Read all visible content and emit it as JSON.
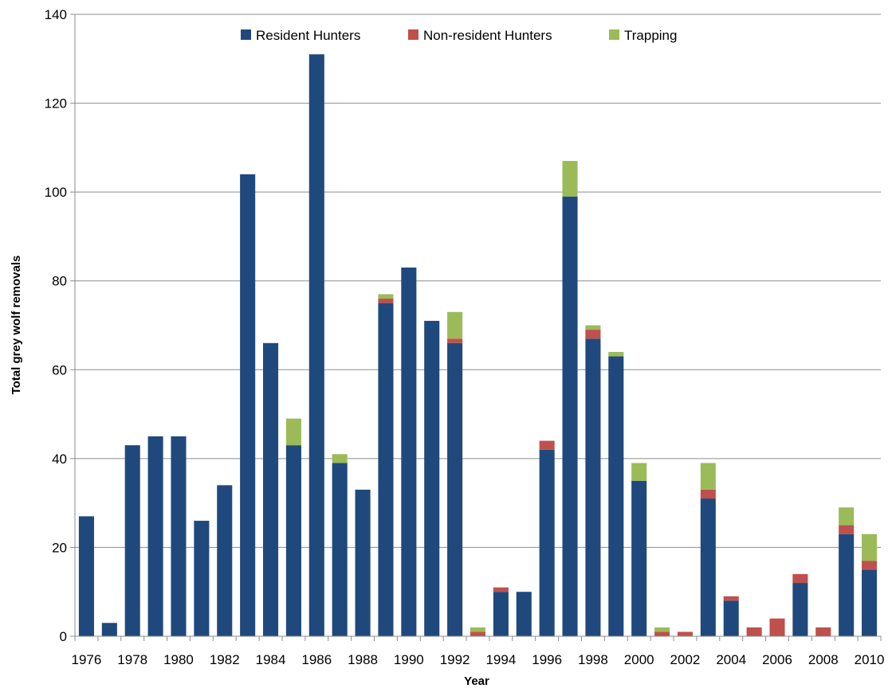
{
  "chart_data": {
    "type": "bar",
    "stacked": true,
    "title": "",
    "xlabel": "Year",
    "ylabel": "Total grey wolf removals",
    "ylim": [
      0,
      140
    ],
    "yticks": [
      0,
      20,
      40,
      60,
      80,
      100,
      120,
      140
    ],
    "grid": true,
    "legend_position": "top-center",
    "categories": [
      "1976",
      "1977",
      "1978",
      "1979",
      "1980",
      "1981",
      "1982",
      "1983",
      "1984",
      "1985",
      "1986",
      "1987",
      "1988",
      "1989",
      "1990",
      "1991",
      "1992",
      "1993",
      "1994",
      "1995",
      "1996",
      "1997",
      "1998",
      "1999",
      "2000",
      "2001",
      "2002",
      "2003",
      "2004",
      "2005",
      "2006",
      "2007",
      "2008",
      "2009",
      "2010"
    ],
    "xtick_labels": [
      "1976",
      "1978",
      "1980",
      "1982",
      "1984",
      "1986",
      "1988",
      "1990",
      "1992",
      "1994",
      "1996",
      "1998",
      "2000",
      "2002",
      "2004",
      "2006",
      "2008",
      "2010"
    ],
    "series": [
      {
        "name": "Resident Hunters",
        "color": "#1f497d",
        "values": [
          27,
          3,
          43,
          45,
          45,
          26,
          34,
          104,
          66,
          43,
          131,
          39,
          33,
          75,
          83,
          71,
          66,
          0,
          10,
          10,
          42,
          99,
          67,
          63,
          35,
          0,
          0,
          31,
          8,
          0,
          0,
          12,
          0,
          23,
          15
        ]
      },
      {
        "name": "Non-resident Hunters",
        "color": "#c0504d",
        "values": [
          0,
          0,
          0,
          0,
          0,
          0,
          0,
          0,
          0,
          0,
          0,
          0,
          0,
          1,
          0,
          0,
          1,
          1,
          1,
          0,
          2,
          0,
          2,
          0,
          0,
          1,
          1,
          2,
          1,
          2,
          4,
          2,
          2,
          2,
          2
        ]
      },
      {
        "name": "Trapping",
        "color": "#9bbb59",
        "values": [
          0,
          0,
          0,
          0,
          0,
          0,
          0,
          0,
          0,
          6,
          0,
          2,
          0,
          1,
          0,
          0,
          6,
          1,
          0,
          0,
          0,
          8,
          1,
          1,
          4,
          1,
          0,
          6,
          0,
          0,
          0,
          0,
          0,
          4,
          6
        ]
      }
    ]
  }
}
